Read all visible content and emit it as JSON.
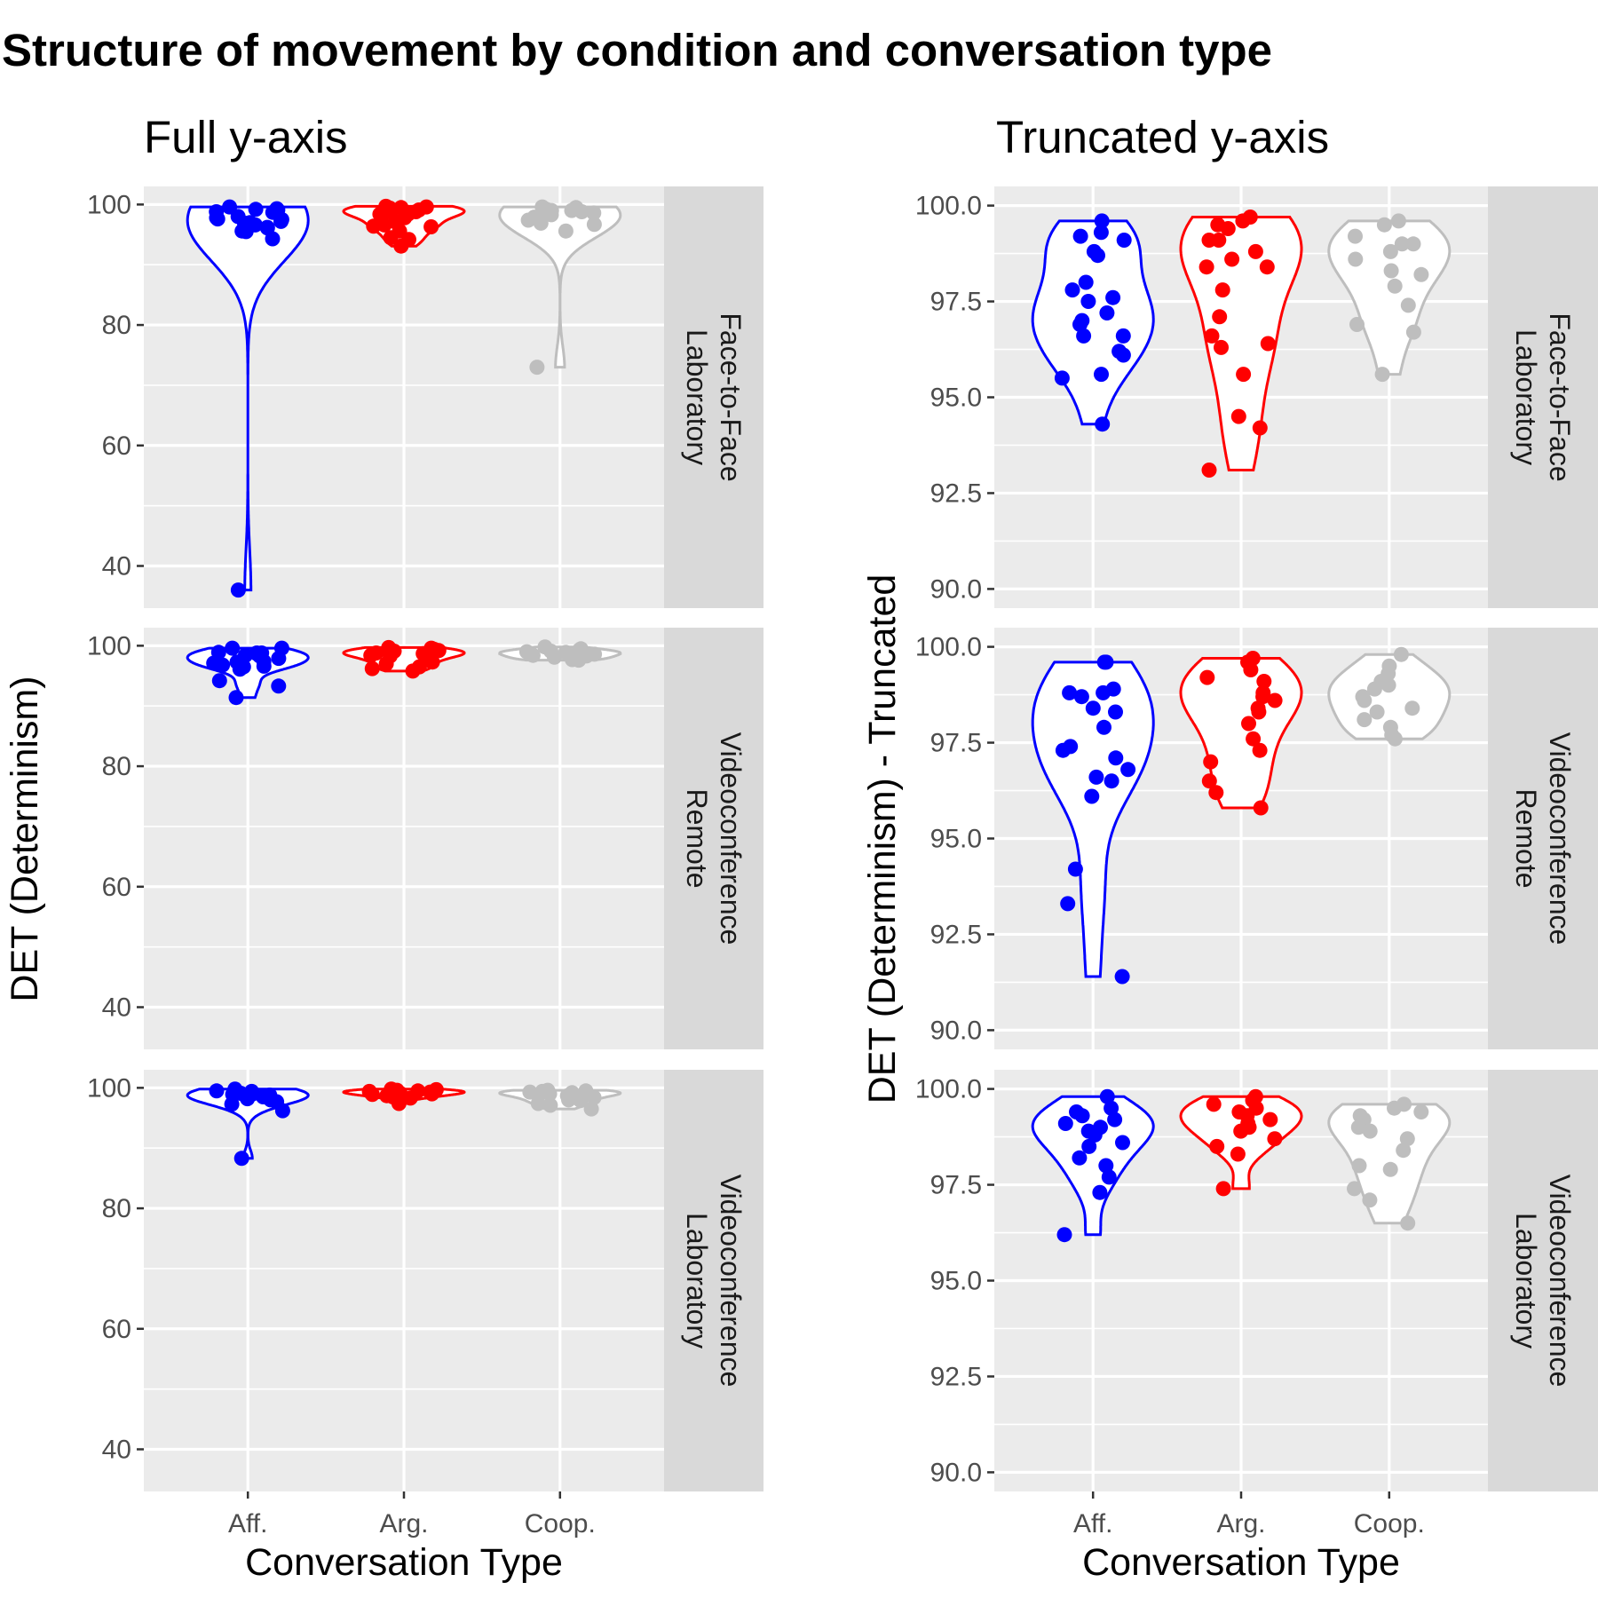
{
  "title": "Structure of movement by condition and conversation type",
  "colors": {
    "Aff.": "#0000ff",
    "Arg.": "#ff0000",
    "Coop.": "#bebebe"
  },
  "chart_data": [
    {
      "type": "violin",
      "title": "Full y-axis",
      "xlabel": "Conversation Type",
      "ylabel": "DET (Determinism)",
      "categories": [
        "Aff.",
        "Arg.",
        "Coop."
      ],
      "ylim": [
        33,
        103
      ],
      "yticks": [
        40,
        60,
        80,
        100
      ],
      "facets": [
        {
          "label": [
            "Face-to-Face",
            "Laboratory"
          ],
          "series": [
            {
              "name": "Aff.",
              "points": [
                99.6,
                99.3,
                99.2,
                99.1,
                98.8,
                98.7,
                98.0,
                97.8,
                97.6,
                97.5,
                97.2,
                97.0,
                96.9,
                96.6,
                96.6,
                96.2,
                96.1,
                95.6,
                95.5,
                94.3,
                36.0
              ]
            },
            {
              "name": "Arg.",
              "points": [
                99.7,
                99.6,
                99.5,
                99.4,
                99.1,
                99.1,
                98.8,
                98.6,
                98.4,
                98.4,
                97.8,
                97.1,
                96.6,
                96.4,
                96.3,
                95.6,
                94.5,
                94.2,
                93.1
              ]
            },
            {
              "name": "Coop.",
              "points": [
                99.6,
                99.5,
                99.2,
                99.0,
                99.0,
                98.8,
                98.6,
                98.3,
                98.2,
                97.9,
                97.4,
                96.9,
                96.7,
                95.6,
                73.0
              ]
            }
          ]
        },
        {
          "label": [
            "Videoconference",
            "Remote"
          ],
          "series": [
            {
              "name": "Aff.",
              "points": [
                99.6,
                99.6,
                98.9,
                98.8,
                98.8,
                98.7,
                98.4,
                98.3,
                97.9,
                97.4,
                97.3,
                97.1,
                96.8,
                96.6,
                96.5,
                96.1,
                94.2,
                93.3,
                91.4
              ]
            },
            {
              "name": "Arg.",
              "points": [
                99.7,
                99.6,
                99.4,
                99.2,
                99.1,
                98.8,
                98.7,
                98.6,
                98.4,
                98.3,
                98.0,
                97.6,
                97.3,
                97.0,
                96.5,
                96.2,
                95.8
              ]
            },
            {
              "name": "Coop.",
              "points": [
                99.8,
                99.5,
                99.3,
                99.1,
                99.0,
                98.9,
                98.7,
                98.6,
                98.4,
                98.3,
                98.1,
                97.9,
                97.7,
                97.6
              ]
            }
          ]
        },
        {
          "label": [
            "Videoconference",
            "Laboratory"
          ],
          "series": [
            {
              "name": "Aff.",
              "points": [
                99.8,
                99.5,
                99.4,
                99.3,
                99.2,
                99.1,
                99.0,
                98.9,
                98.8,
                98.6,
                98.5,
                98.2,
                98.0,
                97.7,
                97.3,
                96.2,
                88.3
              ]
            },
            {
              "name": "Arg.",
              "points": [
                99.8,
                99.7,
                99.6,
                99.5,
                99.4,
                99.3,
                99.2,
                99.1,
                99.0,
                98.9,
                98.7,
                98.5,
                98.3,
                97.4
              ]
            },
            {
              "name": "Coop.",
              "points": [
                99.6,
                99.5,
                99.4,
                99.3,
                99.2,
                99.0,
                98.9,
                98.7,
                98.4,
                98.0,
                97.9,
                97.4,
                97.1,
                96.5
              ]
            }
          ]
        }
      ]
    },
    {
      "type": "violin",
      "title": "Truncated y-axis",
      "xlabel": "Conversation Type",
      "ylabel": "DET (Determinism) - Truncated",
      "categories": [
        "Aff.",
        "Arg.",
        "Coop."
      ],
      "ylim": [
        89.5,
        100.5
      ],
      "yticks": [
        90.0,
        92.5,
        95.0,
        97.5,
        100.0
      ],
      "ytick_labels": [
        "90.0",
        "92.5",
        "95.0",
        "97.5",
        "100.0"
      ],
      "facets": [
        {
          "label": [
            "Face-to-Face",
            "Laboratory"
          ],
          "series": [
            {
              "name": "Aff.",
              "points": [
                99.6,
                99.3,
                99.2,
                99.1,
                98.8,
                98.7,
                98.0,
                97.8,
                97.6,
                97.5,
                97.2,
                97.0,
                96.9,
                96.6,
                96.6,
                96.2,
                96.1,
                95.6,
                95.5,
                94.3
              ]
            },
            {
              "name": "Arg.",
              "points": [
                99.7,
                99.6,
                99.5,
                99.4,
                99.1,
                99.1,
                98.8,
                98.6,
                98.4,
                98.4,
                97.8,
                97.1,
                96.6,
                96.4,
                96.3,
                95.6,
                94.5,
                94.2,
                93.1
              ]
            },
            {
              "name": "Coop.",
              "points": [
                99.6,
                99.5,
                99.2,
                99.0,
                99.0,
                98.8,
                98.6,
                98.3,
                98.2,
                97.9,
                97.4,
                96.9,
                96.7,
                95.6
              ]
            }
          ]
        },
        {
          "label": [
            "Videoconference",
            "Remote"
          ],
          "series": [
            {
              "name": "Aff.",
              "points": [
                99.6,
                99.6,
                98.9,
                98.8,
                98.8,
                98.7,
                98.4,
                98.3,
                97.9,
                97.4,
                97.3,
                97.1,
                96.8,
                96.6,
                96.5,
                96.1,
                94.2,
                93.3,
                91.4
              ]
            },
            {
              "name": "Arg.",
              "points": [
                99.7,
                99.6,
                99.4,
                99.2,
                99.1,
                98.8,
                98.7,
                98.6,
                98.4,
                98.3,
                98.0,
                97.6,
                97.3,
                97.0,
                96.5,
                96.2,
                95.8
              ]
            },
            {
              "name": "Coop.",
              "points": [
                99.8,
                99.5,
                99.3,
                99.1,
                99.0,
                98.9,
                98.7,
                98.6,
                98.4,
                98.3,
                98.1,
                97.9,
                97.7,
                97.6
              ]
            }
          ]
        },
        {
          "label": [
            "Videoconference",
            "Laboratory"
          ],
          "series": [
            {
              "name": "Aff.",
              "points": [
                99.8,
                99.5,
                99.4,
                99.3,
                99.2,
                99.1,
                99.0,
                98.9,
                98.8,
                98.6,
                98.5,
                98.2,
                98.0,
                97.7,
                97.3,
                96.2
              ]
            },
            {
              "name": "Arg.",
              "points": [
                99.8,
                99.7,
                99.6,
                99.5,
                99.4,
                99.3,
                99.2,
                99.1,
                99.0,
                98.9,
                98.7,
                98.5,
                98.3,
                97.4
              ]
            },
            {
              "name": "Coop.",
              "points": [
                99.6,
                99.5,
                99.4,
                99.3,
                99.2,
                99.0,
                98.9,
                98.7,
                98.4,
                98.0,
                97.9,
                97.4,
                97.1,
                96.5
              ]
            }
          ]
        }
      ]
    }
  ]
}
